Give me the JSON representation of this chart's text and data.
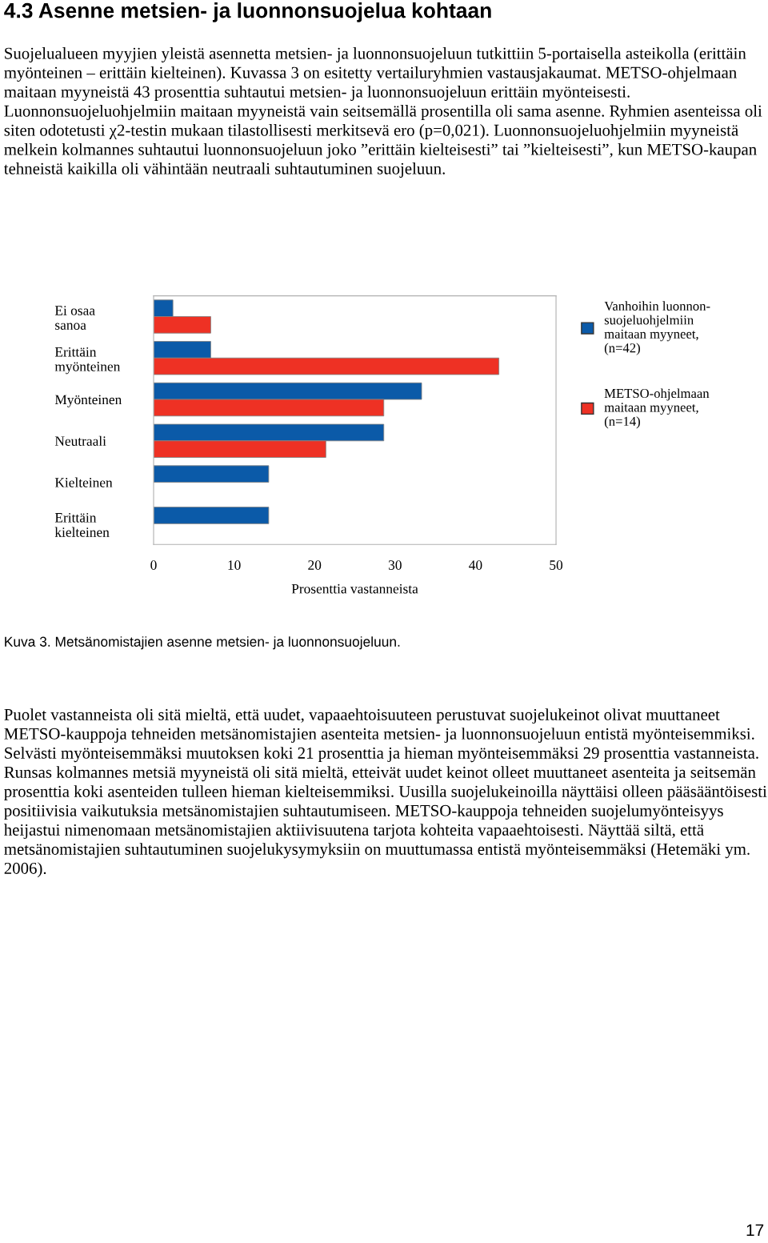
{
  "chart_data": {
    "type": "bar",
    "orientation": "horizontal",
    "title": "4.3 Asenne metsien- ja luonnonsuojelua kohtaan",
    "categories": [
      "Ei osaa\nsanoa",
      "Erittäin\nmyönteinen",
      "Myönteinen",
      "Neutraali",
      "Kielteinen",
      "Erittäin\nkielteinen"
    ],
    "series": [
      {
        "name": "Vanhoihin luonnon-\nsuojeluohjelmiin\nmaitaan myyneet,\n(n=42)",
        "color": "#0b5aa8",
        "values": [
          2.4,
          7.1,
          33.3,
          28.6,
          14.3,
          14.3
        ]
      },
      {
        "name": "METSO-ohjelmaan\nmaitaan myyneet,\n(n=14)",
        "color": "#ee3124",
        "values": [
          7.1,
          42.9,
          28.6,
          21.4,
          0,
          0
        ]
      }
    ],
    "xlabel": "Prosenttia vastanneista",
    "xlim": [
      0,
      50
    ],
    "xticks": [
      0,
      10,
      20,
      30,
      40,
      50
    ],
    "grid": false,
    "legend": "right",
    "annotations": [
      "Suojelualueen myyjien yleistä asennetta metsien- ja luonnonsuojeluun tutkittiin 5-portaisella asteikolla (erittäin myönteinen – erittäin kielteinen). Kuvassa 3 on esitetty vertailuryhmien vastausjakaumat. METSO-ohjelmaan maitaan myyneistä 43 prosenttia suhtautui metsien- ja luonnonsuojeluun erittäin myönteisesti. Luonnonsuojeluohjelmiin maitaan myyneistä vain seitsemällä prosentilla oli sama asenne. Ryhmien asenteissa oli siten odotetusti χ2-testin mukaan tilastollisesti merkitsevä ero (p=0,021). Luonnonsuojeluohjelmiin myyneistä melkein kolmannes suhtautui luonnonsuojeluun joko ”erittäin kielteisesti” tai ”kielteisesti”, kun METSO-kaupan tehneistä kaikilla oli vähintään neutraali suhtautuminen suojeluun.",
      "Kuva 3. Metsänomistajien asenne metsien- ja luonnonsuojeluun.",
      "Puolet vastanneista oli sitä mieltä, että uudet, vapaaehtoisuuteen perustuvat suojelukeinot olivat muuttaneet METSO-kauppoja tehneiden metsänomistajien asenteita metsien- ja luonnonsuojeluun entistä myönteisemmiksi. Selvästi myönteisemmäksi muutoksen koki 21 prosenttia ja hieman myönteisemmäksi 29 prosenttia vastanneista. Runsas kolmannes metsiä myyneistä oli sitä mieltä, etteivät uudet keinot olleet muuttaneet asenteita ja seitsemän prosenttia koki asenteiden tulleen hieman kielteisemmiksi. Uusilla suojelukeinoilla näyttäisi olleen pääsääntöisesti positiivisia vaikutuksia metsänomistajien suhtautumiseen. METSO-kauppoja tehneiden suojelumyönteisyys heijastui nimenomaan metsänomistajien aktiivisuutena tarjota kohteita vapaaehtoisesti. Näyttää siltä, että metsänomistajien suhtautuminen suojelukysymyksiin on muuttumassa entistä myönteisemmäksi (Hetemäki ym. 2006).",
      "17"
    ]
  }
}
